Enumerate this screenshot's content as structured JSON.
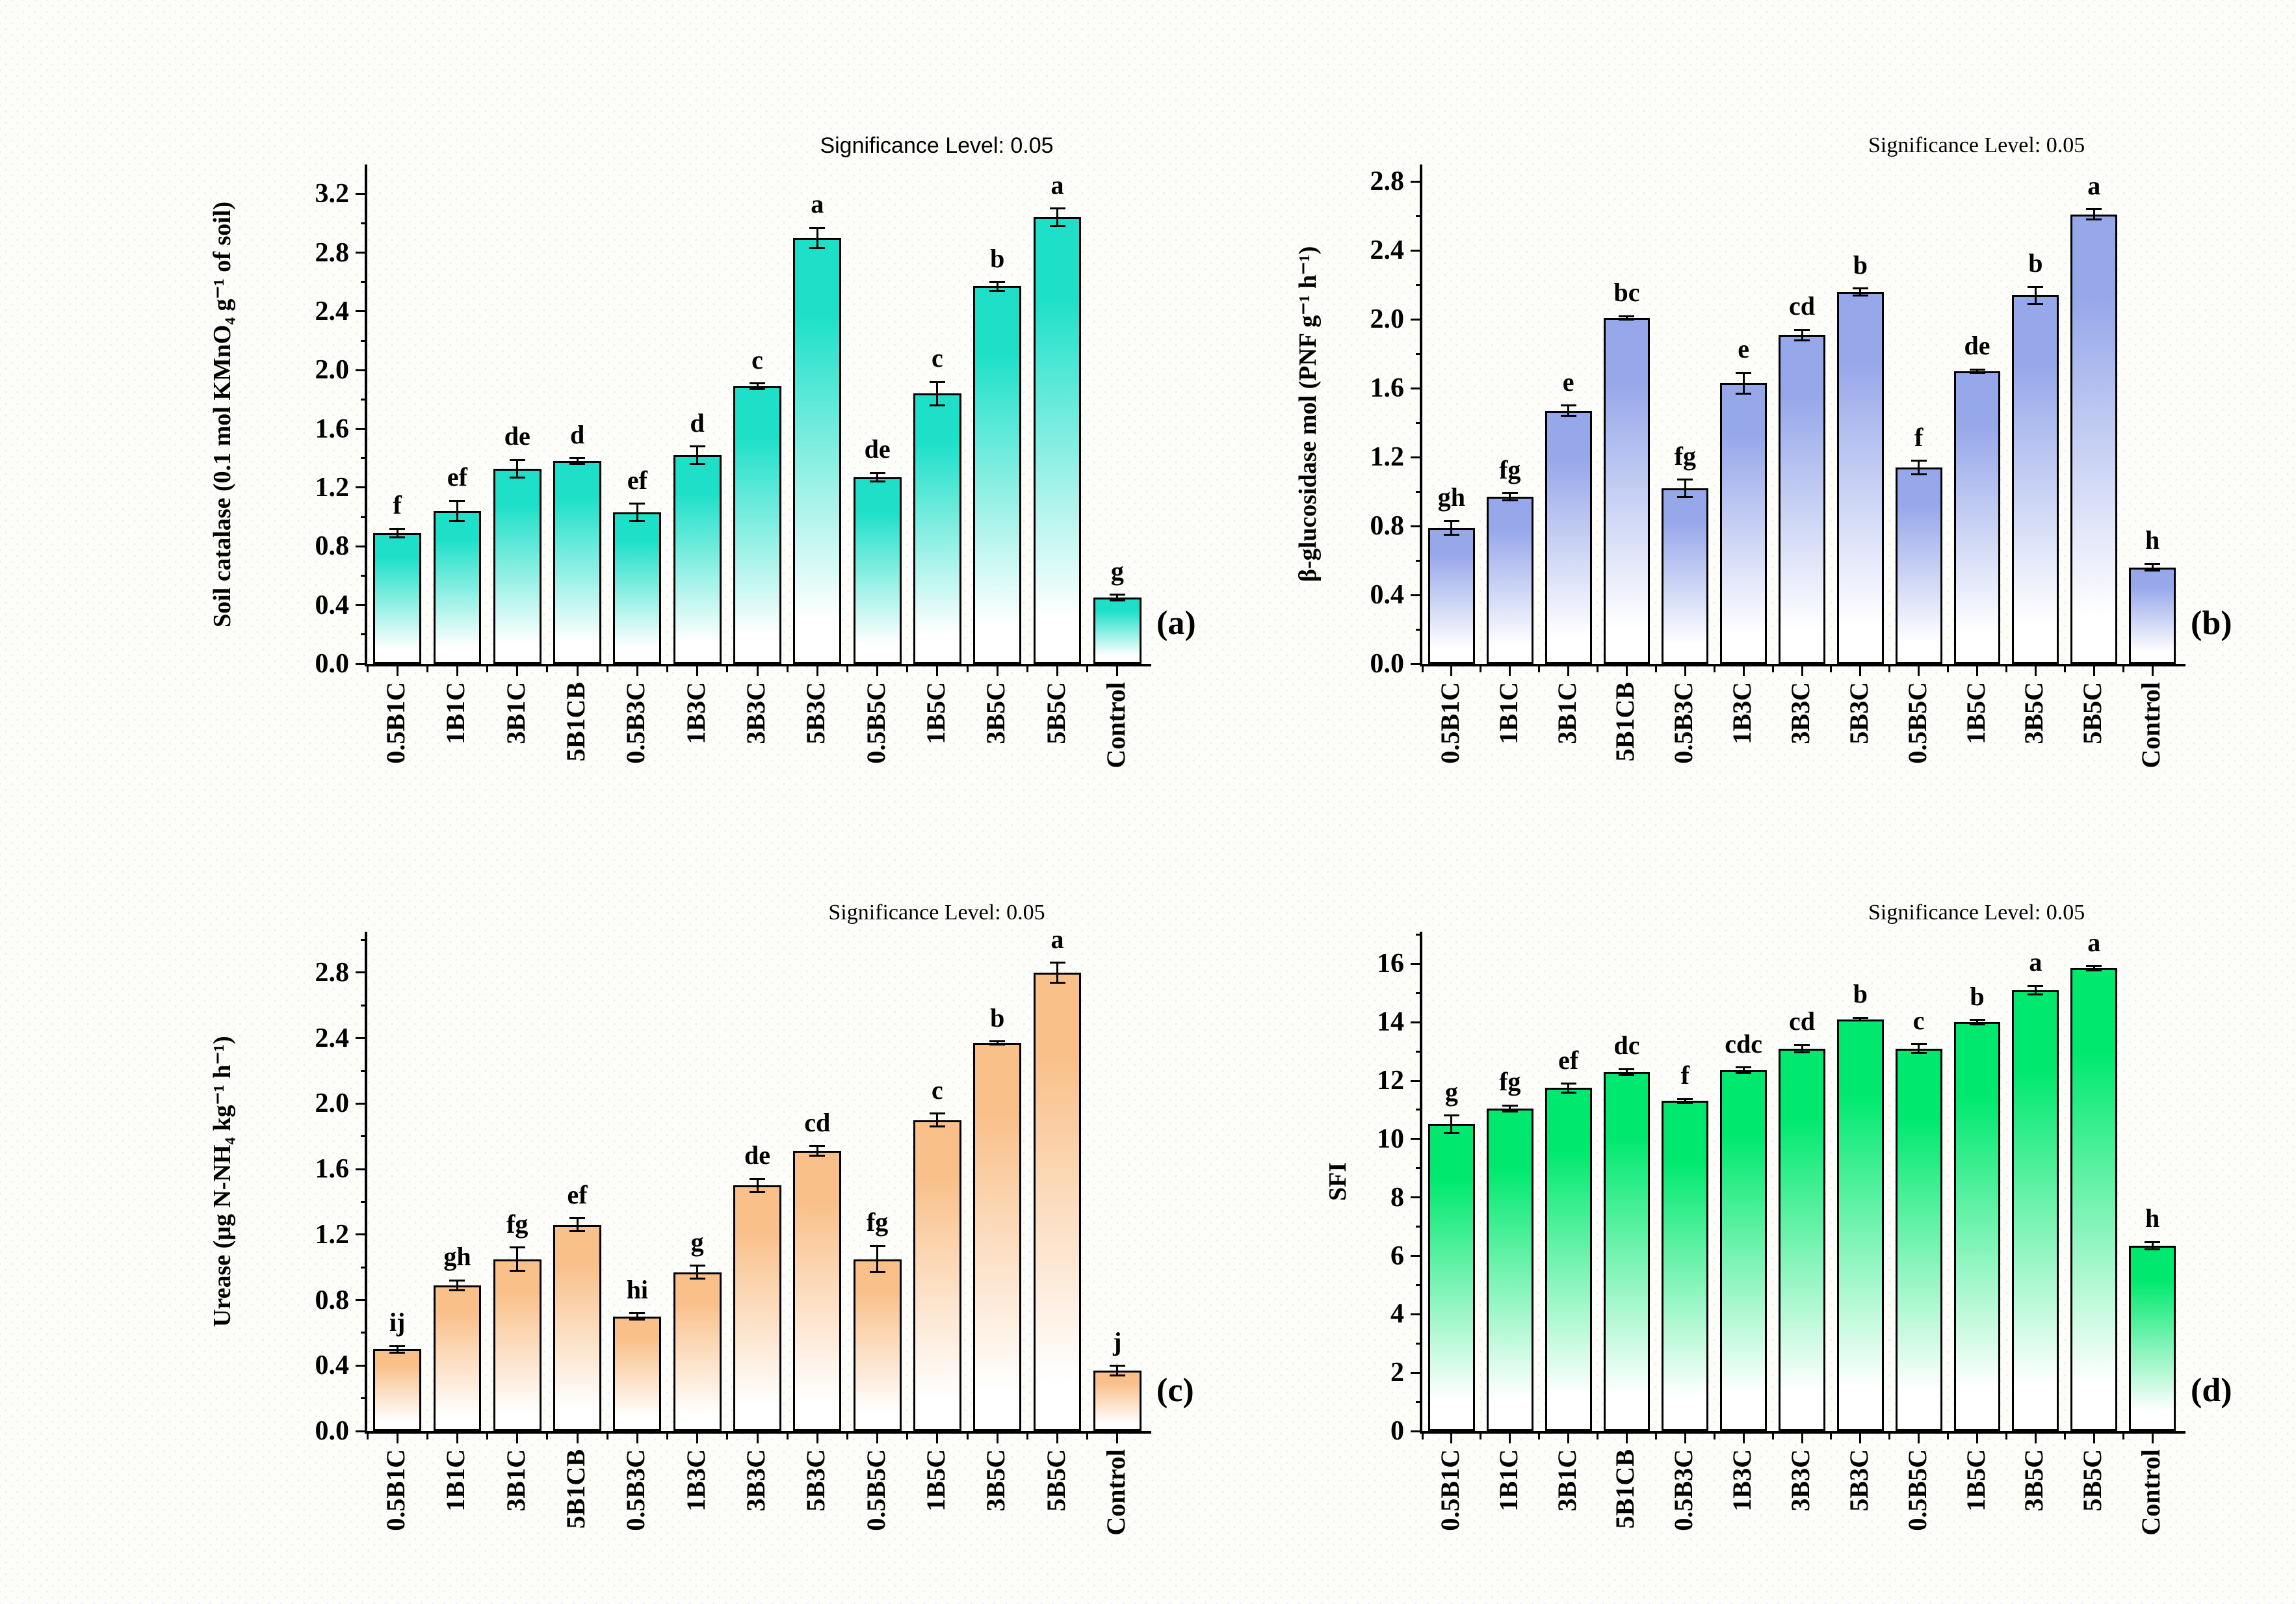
{
  "figure": {
    "background": "#fdfdfa",
    "axis_color": "#000000"
  },
  "chart_data": [
    {
      "id": "a",
      "type": "bar",
      "panel_label": "(a)",
      "title": "Significance Level: 0.05",
      "title_font": "sans",
      "ylabel": "Soil catalase (0.1 mol KMnO₄ g⁻¹ of soil)",
      "xlabel": "",
      "bar_color_top": "#1ee0c9",
      "bar_color_bottom": "#ffffff",
      "grid": false,
      "legend": "none",
      "categories": [
        "0.5B1C",
        "1B1C",
        "3B1C",
        "5B1CB",
        "0.5B3C",
        "1B3C",
        "3B3C",
        "5B3C",
        "0.5B5C",
        "1B5C",
        "3B5C",
        "5B5C",
        "Control"
      ],
      "values": [
        0.89,
        1.04,
        1.33,
        1.38,
        1.03,
        1.42,
        1.89,
        2.9,
        1.27,
        1.84,
        2.57,
        3.04,
        0.45
      ],
      "errors": [
        0.03,
        0.07,
        0.06,
        0.02,
        0.06,
        0.06,
        0.02,
        0.07,
        0.03,
        0.08,
        0.03,
        0.06,
        0.02
      ],
      "sig_letters": [
        "f",
        "ef",
        "de",
        "d",
        "ef",
        "d",
        "c",
        "a",
        "de",
        "c",
        "b",
        "a",
        "g"
      ],
      "ylim": [
        0,
        3.4
      ],
      "ytick_step": 0.4,
      "ytick_values": [
        0.0,
        0.4,
        0.8,
        1.2,
        1.6,
        2.0,
        2.4,
        2.8,
        3.2
      ],
      "ytick_labels": [
        "0.0",
        "0.4",
        "0.8",
        "1.2",
        "1.6",
        "2.0",
        "2.4",
        "2.8",
        "3.2"
      ]
    },
    {
      "id": "b",
      "type": "bar",
      "panel_label": "(b)",
      "title": "Significance Level: 0.05",
      "title_font": "serif",
      "ylabel": "β-glucosidase mol (PNF g⁻¹ h⁻¹)",
      "xlabel": "",
      "bar_color_top": "#96a7ea",
      "bar_color_bottom": "#ffffff",
      "grid": false,
      "legend": "none",
      "categories": [
        "0.5B1C",
        "1B1C",
        "3B1C",
        "5B1CB",
        "0.5B3C",
        "1B3C",
        "3B3C",
        "5B3C",
        "0.5B5C",
        "1B5C",
        "3B5C",
        "5B5C",
        "Control"
      ],
      "values": [
        0.79,
        0.97,
        1.47,
        2.01,
        1.02,
        1.63,
        1.91,
        2.16,
        1.14,
        1.7,
        2.14,
        2.61,
        0.56
      ],
      "errors": [
        0.04,
        0.02,
        0.03,
        0.01,
        0.05,
        0.06,
        0.03,
        0.02,
        0.04,
        0.01,
        0.05,
        0.03,
        0.02
      ],
      "sig_letters": [
        "gh",
        "fg",
        "e",
        "bc",
        "fg",
        "e",
        "cd",
        "b",
        "f",
        "de",
        "b",
        "a",
        "h"
      ],
      "ylim": [
        0,
        2.9
      ],
      "ytick_step": 0.4,
      "ytick_values": [
        0.0,
        0.4,
        0.8,
        1.2,
        1.6,
        2.0,
        2.4,
        2.8
      ],
      "ytick_labels": [
        "0.0",
        "0.4",
        "0.8",
        "1.2",
        "1.6",
        "2.0",
        "2.4",
        "2.8"
      ]
    },
    {
      "id": "c",
      "type": "bar",
      "panel_label": "(c)",
      "title": "Significance Level: 0.05",
      "title_font": "serif",
      "ylabel": "Urease (μg N-NH₄ kg⁻¹ h⁻¹)",
      "xlabel": "",
      "bar_color_top": "#f9c08a",
      "bar_color_bottom": "#ffffff",
      "grid": false,
      "legend": "none",
      "categories": [
        "0.5B1C",
        "1B1C",
        "3B1C",
        "5B1CB",
        "0.5B3C",
        "1B3C",
        "3B3C",
        "5B3C",
        "0.5B5C",
        "1B5C",
        "3B5C",
        "5B5C",
        "Control"
      ],
      "values": [
        0.5,
        0.89,
        1.05,
        1.26,
        0.7,
        0.97,
        1.5,
        1.71,
        1.05,
        1.9,
        2.37,
        2.8,
        0.37
      ],
      "errors": [
        0.02,
        0.03,
        0.07,
        0.04,
        0.02,
        0.04,
        0.04,
        0.03,
        0.08,
        0.04,
        0.01,
        0.06,
        0.03
      ],
      "sig_letters": [
        "ij",
        "gh",
        "fg",
        "ef",
        "hi",
        "g",
        "de",
        "cd",
        "fg",
        "c",
        "b",
        "a",
        "j"
      ],
      "ylim": [
        0,
        3.05
      ],
      "ytick_step": 0.4,
      "ytick_values": [
        0.0,
        0.4,
        0.8,
        1.2,
        1.6,
        2.0,
        2.4,
        2.8
      ],
      "ytick_labels": [
        "0.0",
        "0.4",
        "0.8",
        "1.2",
        "1.6",
        "2.0",
        "2.4",
        "2.8"
      ]
    },
    {
      "id": "d",
      "type": "bar",
      "panel_label": "(d)",
      "title": "Significance Level: 0.05",
      "title_font": "serif",
      "ylabel": "SFI",
      "xlabel": "",
      "bar_color_top": "#00e96e",
      "bar_color_bottom": "#ffffff",
      "grid": false,
      "legend": "none",
      "categories": [
        "0.5B1C",
        "1B1C",
        "3B1C",
        "5B1CB",
        "0.5B3C",
        "1B3C",
        "3B3C",
        "5B3C",
        "0.5B5C",
        "1B5C",
        "3B5C",
        "5B5C",
        "Control"
      ],
      "values": [
        10.5,
        11.05,
        11.75,
        12.3,
        11.3,
        12.35,
        13.1,
        14.1,
        13.1,
        14.0,
        15.1,
        15.85,
        6.35
      ],
      "errors": [
        0.3,
        0.1,
        0.15,
        0.1,
        0.07,
        0.1,
        0.12,
        0.05,
        0.15,
        0.08,
        0.15,
        0.08,
        0.12
      ],
      "sig_letters": [
        "g",
        "fg",
        "ef",
        "dc",
        "f",
        "cdc",
        "cd",
        "b",
        "c",
        "b",
        "a",
        "a",
        "h"
      ],
      "ylim": [
        0,
        17.1
      ],
      "ytick_step": 2,
      "ytick_values": [
        0,
        2,
        4,
        6,
        8,
        10,
        12,
        14,
        16
      ],
      "ytick_labels": [
        "0",
        "2",
        "4",
        "6",
        "8",
        "10",
        "12",
        "14",
        "16"
      ]
    }
  ]
}
